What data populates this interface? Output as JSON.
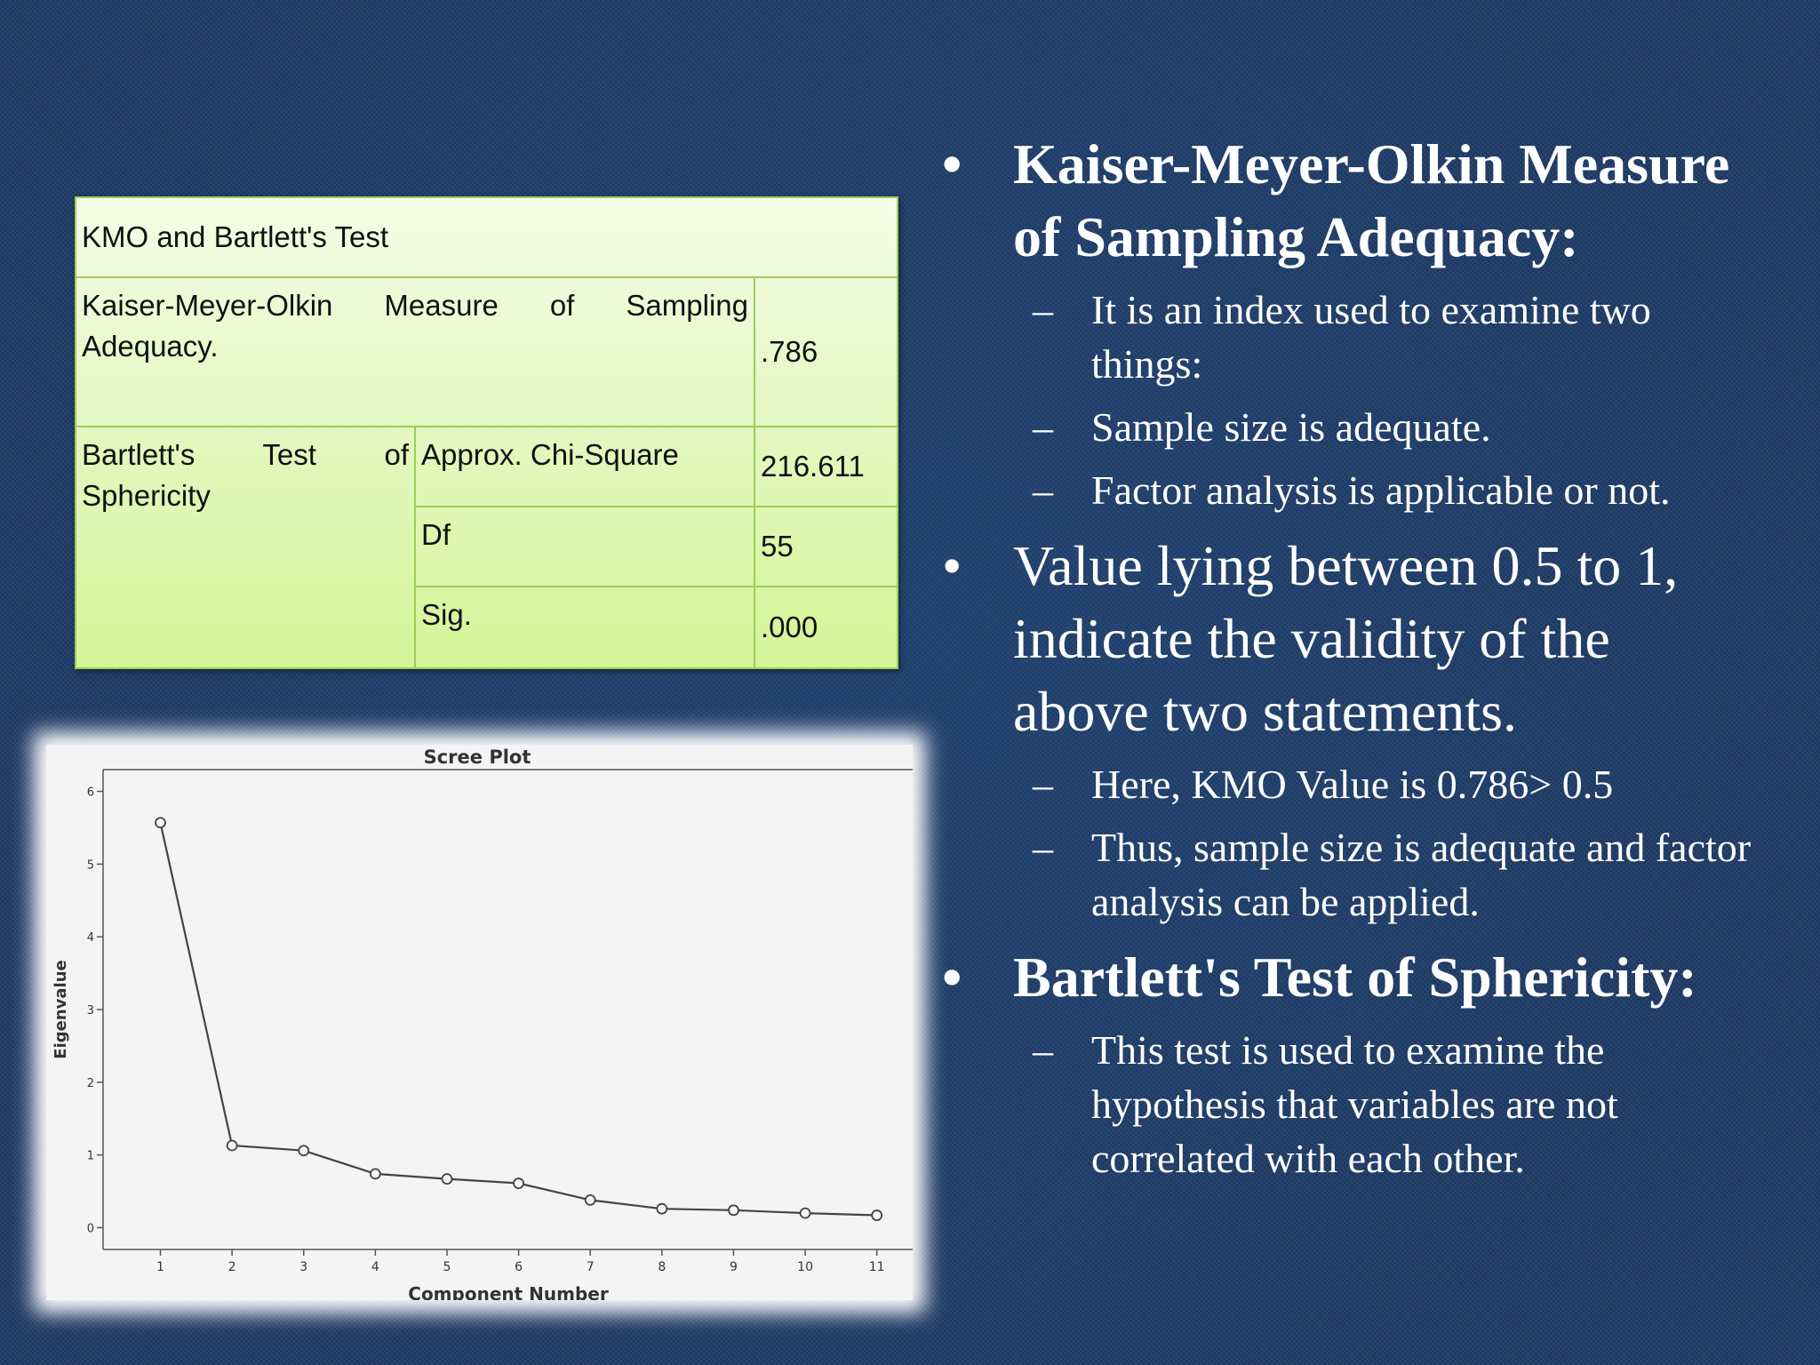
{
  "kmo_table": {
    "title": "KMO and Bartlett's Test",
    "kmo_label": "Kaiser-Meyer-Olkin Measure of Sampling Adequacy.",
    "kmo_label_line1": "Kaiser-Meyer-Olkin Measure of Sampling",
    "kmo_label_line2": "Adequacy.",
    "kmo_value": ".786",
    "bartlett_label_line1": "Bartlett's Test of",
    "bartlett_label_line2": "Sphericity",
    "rows": [
      {
        "label": "Approx. Chi-Square",
        "value": "216.611"
      },
      {
        "label": "Df",
        "value": "55"
      },
      {
        "label": "Sig.",
        "value": ".000"
      }
    ]
  },
  "chart_data": {
    "type": "line",
    "title": "Scree Plot",
    "xlabel": "Component Number",
    "ylabel": "Eigenvalue",
    "x": [
      1,
      2,
      3,
      4,
      5,
      6,
      7,
      8,
      9,
      10,
      11
    ],
    "values": [
      5.57,
      1.13,
      1.06,
      0.74,
      0.67,
      0.61,
      0.38,
      0.26,
      0.24,
      0.2,
      0.17
    ],
    "yticks": [
      0,
      1,
      2,
      3,
      4,
      5,
      6
    ],
    "ylim": [
      -0.3,
      6.3
    ],
    "xlim": [
      0.2,
      11.5
    ],
    "grid": false,
    "colors": {
      "line": "#444444",
      "marker": "#444444",
      "background": "#f4f4f4"
    }
  },
  "bullets": [
    {
      "text": "Kaiser-Meyer-Olkin Measure of Sampling Adequacy:",
      "bold": true,
      "subs": [
        " It is an index used to examine two things:",
        "Sample size is adequate.",
        "Factor analysis is applicable or not."
      ]
    },
    {
      "text": "Value lying between 0.5 to 1, indicate the validity of the above two statements.",
      "bold": false,
      "subs": [
        "Here, KMO Value is 0.786> 0.5",
        "Thus, sample size is adequate and factor analysis can be applied."
      ]
    },
    {
      "text": "Bartlett's Test of Sphericity:",
      "bold": true,
      "subs": [
        "This test is used to examine the hypothesis that variables are not correlated with each other."
      ]
    }
  ],
  "glyphs": {
    "bullet": "•",
    "dash": "–"
  }
}
